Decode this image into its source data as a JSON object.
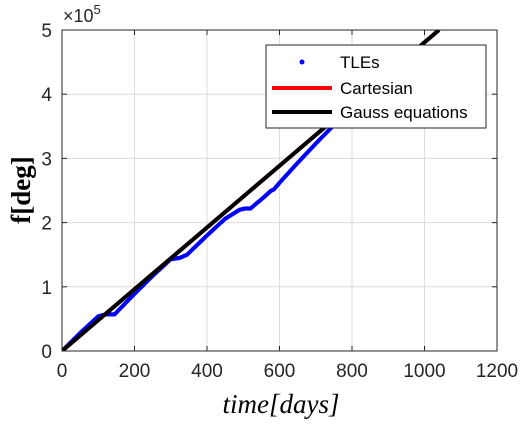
{
  "chart_data": {
    "type": "line",
    "xlabel": "time[days]",
    "ylabel": "f[deg]",
    "xlim": [
      0,
      1200
    ],
    "ylim": [
      0,
      500000
    ],
    "x_ticks": [
      0,
      200,
      400,
      600,
      800,
      1000,
      1200
    ],
    "y_ticks": [
      0,
      1,
      2,
      3,
      4,
      5
    ],
    "y_tick_labels": [
      "0",
      "1",
      "2",
      "3",
      "4",
      "5"
    ],
    "x_tick_labels": [
      "0",
      "200",
      "400",
      "600",
      "800",
      "1000",
      "1200"
    ],
    "y_exponent_label": "×10",
    "y_exponent_power": "5",
    "y_multiplier": 100000,
    "grid": true,
    "legend_position": "top-right",
    "series": [
      {
        "name": "TLEs",
        "style": "dots",
        "color": "#0000ff",
        "x": [
          0,
          50,
          100,
          120,
          145,
          200,
          250,
          300,
          325,
          345,
          400,
          450,
          490,
          505,
          520,
          560,
          575,
          585,
          600,
          650,
          700,
          750,
          800,
          820
        ],
        "y": [
          0,
          28000,
          54000,
          57000,
          57000,
          89000,
          117000,
          143000,
          145000,
          150000,
          180000,
          206000,
          220000,
          222000,
          222000,
          241000,
          249000,
          252000,
          262000,
          293000,
          323000,
          352000,
          380000,
          392000
        ]
      },
      {
        "name": "Cartesian",
        "style": "line",
        "color": "#ff0000",
        "x": [
          0,
          1040
        ],
        "y": [
          0,
          500000
        ]
      },
      {
        "name": "Gauss equations",
        "style": "line",
        "color": "#000000",
        "x": [
          0,
          1040
        ],
        "y": [
          0,
          500000
        ]
      }
    ]
  }
}
